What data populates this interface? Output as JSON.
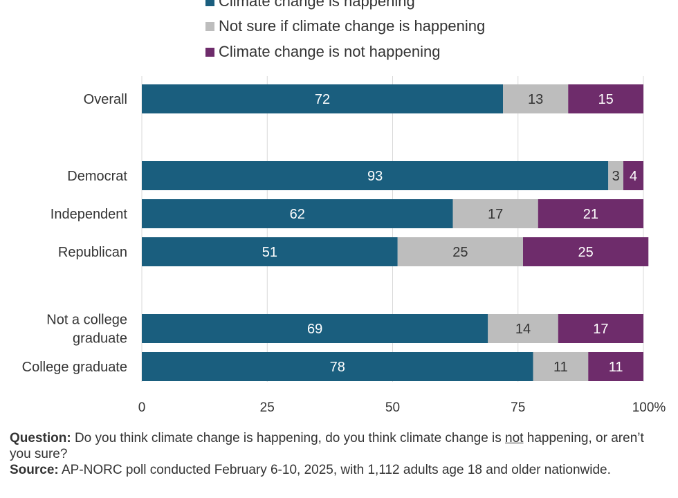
{
  "chart_data": {
    "type": "bar",
    "orientation": "horizontal",
    "stacked": true,
    "categories": [
      "Overall",
      "Democrat",
      "Independent",
      "Republican",
      "Not a college graduate",
      "College graduate"
    ],
    "category_lines": [
      [
        "Overall"
      ],
      [
        "Democrat"
      ],
      [
        "Independent"
      ],
      [
        "Republican"
      ],
      [
        "Not a college",
        "graduate"
      ],
      [
        "College graduate"
      ]
    ],
    "groups": [
      [
        "Overall"
      ],
      [
        "Democrat",
        "Independent",
        "Republican"
      ],
      [
        "Not a college graduate",
        "College graduate"
      ]
    ],
    "series": [
      {
        "name": "Climate change is happening",
        "color": "#1a5e7e",
        "values": [
          72,
          93,
          62,
          51,
          69,
          78
        ]
      },
      {
        "name": "Not sure if climate change is happening",
        "color": "#bdbdbd",
        "values": [
          13,
          3,
          17,
          25,
          14,
          11
        ]
      },
      {
        "name": "Climate change is not happening",
        "color": "#6e2c6b",
        "values": [
          15,
          4,
          21,
          25,
          17,
          11
        ]
      }
    ],
    "x_ticks": [
      "0",
      "25",
      "50",
      "75",
      "100"
    ],
    "x_tick_suffix": "%",
    "xlim": [
      0,
      100
    ],
    "grid": true,
    "legend_position": "top"
  },
  "notes": {
    "question_label": "Question:",
    "question_part1": " Do you think climate change is happening, do you think climate change is ",
    "question_underlined": "not",
    "question_part2": " happening, or aren’t you sure?",
    "source_label": "Source:",
    "source_text": " AP-NORC poll conducted February 6-10, 2025, with 1,112 adults age 18 and older nationwide."
  }
}
